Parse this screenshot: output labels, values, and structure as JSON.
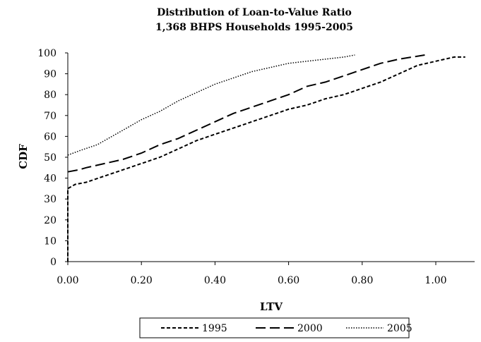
{
  "chart_data": {
    "type": "line",
    "title": "Distribution of Loan-to-Value Ratio",
    "subtitle": "1,368 BHPS Households 1995-2005",
    "xlabel": "LTV",
    "ylabel": "CDF",
    "xlim": [
      0,
      1.1
    ],
    "ylim": [
      0,
      100
    ],
    "x_ticks": [
      "0.00",
      "0.20",
      "0.40",
      "0.60",
      "0.80",
      "1.00"
    ],
    "y_ticks": [
      "0",
      "10",
      "20",
      "30",
      "40",
      "50",
      "60",
      "70",
      "80",
      "90",
      "100"
    ],
    "grid": false,
    "legend_position": "bottom",
    "series": [
      {
        "name": "1995",
        "style": "short-dash",
        "color": "#000000",
        "x": [
          0,
          0,
          0.02,
          0.05,
          0.1,
          0.15,
          0.2,
          0.25,
          0.3,
          0.35,
          0.4,
          0.45,
          0.5,
          0.55,
          0.6,
          0.65,
          0.7,
          0.75,
          0.8,
          0.85,
          0.9,
          0.95,
          1.0,
          1.05,
          1.08
        ],
        "values": [
          0,
          35,
          37,
          38,
          41,
          44,
          47,
          50,
          54,
          58,
          61,
          64,
          67,
          70,
          73,
          75,
          78,
          80,
          83,
          86,
          90,
          94,
          96,
          98,
          98
        ]
      },
      {
        "name": "2000",
        "style": "long-dash",
        "color": "#000000",
        "x": [
          0,
          0.03,
          0.05,
          0.1,
          0.15,
          0.2,
          0.25,
          0.3,
          0.35,
          0.4,
          0.45,
          0.5,
          0.55,
          0.6,
          0.65,
          0.7,
          0.75,
          0.8,
          0.85,
          0.9,
          0.97
        ],
        "values": [
          43,
          44,
          45,
          47,
          49,
          52,
          56,
          59,
          63,
          67,
          71,
          74,
          77,
          80,
          84,
          86,
          89,
          92,
          95,
          97,
          99
        ]
      },
      {
        "name": "2005",
        "style": "dotted",
        "color": "#000000",
        "x": [
          0,
          0.03,
          0.08,
          0.12,
          0.16,
          0.2,
          0.25,
          0.3,
          0.35,
          0.4,
          0.45,
          0.5,
          0.55,
          0.6,
          0.65,
          0.7,
          0.75,
          0.78
        ],
        "values": [
          51,
          53,
          56,
          60,
          64,
          68,
          72,
          77,
          81,
          85,
          88,
          91,
          93,
          95,
          96,
          97,
          98,
          99
        ]
      }
    ]
  }
}
